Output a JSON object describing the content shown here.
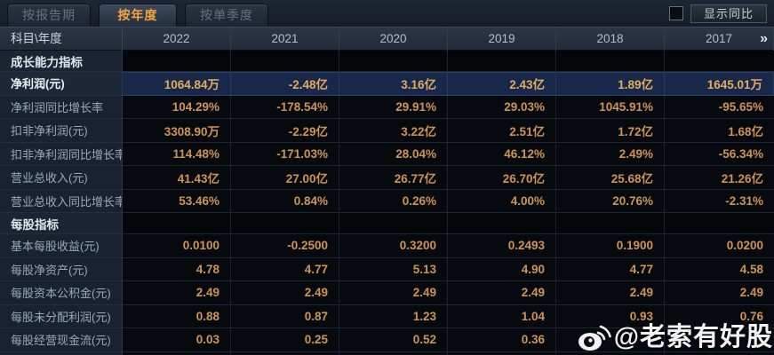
{
  "tabs": [
    {
      "name": "tab-by-report-period",
      "label": "按报告期",
      "active": false
    },
    {
      "name": "tab-by-year",
      "label": "按年度",
      "active": true
    },
    {
      "name": "tab-by-quarter",
      "label": "按单季度",
      "active": false
    }
  ],
  "controls": {
    "show_yoy_label": "显示同比",
    "checkbox_checked": false
  },
  "header": {
    "corner": "科目\\年度",
    "years": [
      "2022",
      "2021",
      "2020",
      "2019",
      "2018",
      "2017"
    ],
    "more_icon": "»"
  },
  "rows": [
    {
      "type": "section",
      "label": "成长能力指标"
    },
    {
      "type": "data",
      "label": "净利润(元)",
      "highlight": true,
      "values": [
        "1064.84万",
        "-2.48亿",
        "3.16亿",
        "2.43亿",
        "1.89亿",
        "1645.01万"
      ]
    },
    {
      "type": "data",
      "label": "净利润同比增长率",
      "values": [
        "104.29%",
        "-178.54%",
        "29.91%",
        "29.03%",
        "1045.91%",
        "-95.65%"
      ]
    },
    {
      "type": "data",
      "label": "扣非净利润(元)",
      "values": [
        "3308.90万",
        "-2.29亿",
        "3.22亿",
        "2.51亿",
        "1.72亿",
        "1.68亿"
      ]
    },
    {
      "type": "data",
      "label": "扣非净利润同比增长率",
      "values": [
        "114.48%",
        "-171.03%",
        "28.04%",
        "46.12%",
        "2.49%",
        "-56.34%"
      ]
    },
    {
      "type": "data",
      "label": "营业总收入(元)",
      "values": [
        "41.43亿",
        "27.00亿",
        "26.77亿",
        "26.70亿",
        "25.68亿",
        "21.26亿"
      ]
    },
    {
      "type": "data",
      "label": "营业总收入同比增长率",
      "values": [
        "53.46%",
        "0.84%",
        "0.26%",
        "4.00%",
        "20.76%",
        "-2.31%"
      ]
    },
    {
      "type": "section",
      "label": "每股指标"
    },
    {
      "type": "data",
      "label": "基本每股收益(元)",
      "values": [
        "0.0100",
        "-0.2500",
        "0.3200",
        "0.2493",
        "0.1900",
        "0.0200"
      ]
    },
    {
      "type": "data",
      "label": "每股净资产(元)",
      "values": [
        "4.78",
        "4.77",
        "5.13",
        "4.90",
        "4.77",
        "4.58"
      ]
    },
    {
      "type": "data",
      "label": "每股资本公积金(元)",
      "values": [
        "2.49",
        "2.49",
        "2.49",
        "2.49",
        "2.49",
        "2.49"
      ]
    },
    {
      "type": "data",
      "label": "每股未分配利润(元)",
      "values": [
        "0.88",
        "0.87",
        "1.23",
        "1.04",
        "0.93",
        "0.76"
      ]
    },
    {
      "type": "data",
      "label": "每股经营现金流(元)",
      "values": [
        "0.03",
        "0.25",
        "0.52",
        "0.36",
        "",
        ""
      ]
    }
  ],
  "watermark": {
    "icon": "weibo-icon",
    "text": "@老索有好股"
  },
  "colors": {
    "value_orange": "#cf9355",
    "highlight_row_bg": "#17284a",
    "active_tab_text": "#f0a63e",
    "label_column_bg": "#192231",
    "header_bg": "#212b39"
  }
}
